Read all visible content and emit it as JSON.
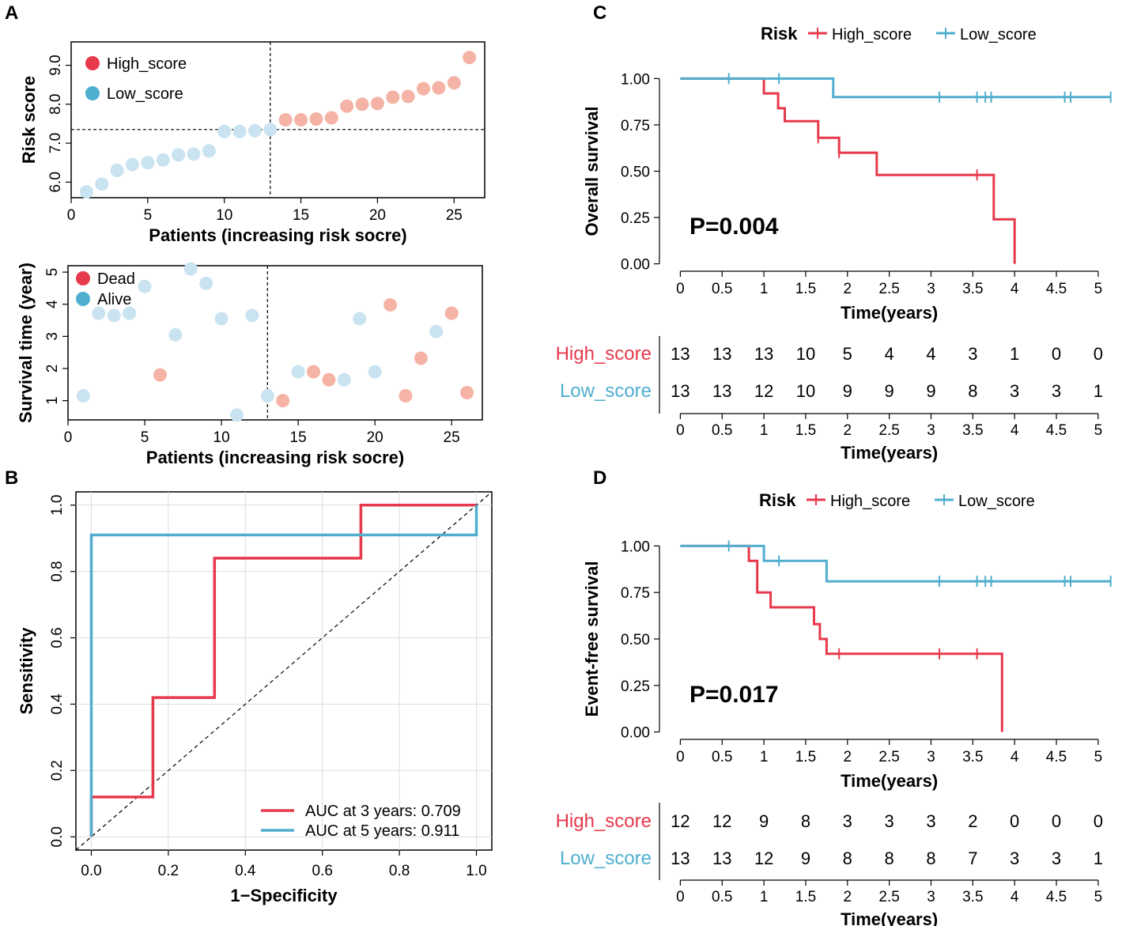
{
  "colors": {
    "high": "#E7394C",
    "low": "#50AECF",
    "high_light": "#F5B3A6",
    "low_light": "#C9E3F1",
    "axis": "#000000",
    "grid": "#DDDDDD"
  },
  "panels": {
    "A": {
      "letter": "A",
      "legend": [
        "High_score",
        "Low_score"
      ],
      "legend2": [
        "Dead",
        "Alive"
      ]
    },
    "B": {
      "letter": "B",
      "legend": [
        "AUC at 3 years: 0.709",
        "AUC at 5 years: 0.911"
      ]
    },
    "C": {
      "letter": "C",
      "legend_title": "Risk",
      "legend": [
        "High_score",
        "Low_score"
      ],
      "pvalue": "P=0.004"
    },
    "D": {
      "letter": "D",
      "legend_title": "Risk",
      "legend": [
        "High_score",
        "Low_score"
      ],
      "pvalue": "P=0.017"
    }
  },
  "chart_data": [
    {
      "id": "A-top",
      "type": "scatter",
      "xlabel": "Patients (increasing risk socre)",
      "ylabel": "Risk score",
      "xlim": [
        0,
        27
      ],
      "ylim": [
        5.6,
        9.6
      ],
      "xticks": [
        "0",
        "5",
        "10",
        "15",
        "20",
        "25"
      ],
      "yticks": [
        "6.0",
        "7.0",
        "8.0",
        "9.0"
      ],
      "cutoff_x": 13,
      "cutoff_y": 7.35,
      "series": [
        {
          "name": "Low_score",
          "x": [
            1,
            2,
            3,
            4,
            5,
            6,
            7,
            8,
            9,
            10,
            11,
            12,
            13
          ],
          "y": [
            5.75,
            5.95,
            6.3,
            6.45,
            6.5,
            6.57,
            6.7,
            6.72,
            6.8,
            7.3,
            7.3,
            7.32,
            7.35
          ]
        },
        {
          "name": "High_score",
          "x": [
            14,
            15,
            16,
            17,
            18,
            19,
            20,
            21,
            22,
            23,
            24,
            25,
            26
          ],
          "y": [
            7.6,
            7.6,
            7.62,
            7.65,
            7.95,
            8.0,
            8.02,
            8.18,
            8.2,
            8.4,
            8.42,
            8.55,
            9.2
          ]
        }
      ]
    },
    {
      "id": "A-bottom",
      "type": "scatter",
      "xlabel": "Patients (increasing risk socre)",
      "ylabel": "Survival time (year)",
      "xlim": [
        0,
        27
      ],
      "ylim": [
        0.4,
        5.2
      ],
      "xticks": [
        "0",
        "5",
        "10",
        "15",
        "20",
        "25"
      ],
      "yticks": [
        "1",
        "2",
        "3",
        "4",
        "5"
      ],
      "cutoff_x": 13,
      "series": [
        {
          "name": "Low_score Alive",
          "x": [
            1,
            2,
            3,
            4,
            5,
            7,
            8,
            9,
            10,
            11,
            12,
            13,
            15,
            18,
            19,
            20,
            24
          ],
          "y": [
            1.15,
            3.72,
            3.65,
            3.72,
            4.55,
            3.05,
            5.1,
            4.65,
            3.55,
            0.55,
            3.65,
            1.15,
            1.9,
            1.65,
            3.55,
            1.9,
            3.15
          ]
        },
        {
          "name": "Low_score Dead",
          "x": [
            6
          ],
          "y": [
            1.8
          ]
        },
        {
          "name": "High_score Dead",
          "x": [
            14,
            16,
            17,
            21,
            22,
            23,
            25,
            26
          ],
          "y": [
            1.0,
            1.9,
            1.65,
            3.98,
            1.15,
            2.32,
            3.72,
            1.25
          ]
        }
      ]
    },
    {
      "id": "B",
      "type": "line",
      "xlabel": "1−Specificity",
      "ylabel": "Sensitivity",
      "xlim": [
        -0.04,
        1.04
      ],
      "ylim": [
        -0.04,
        1.04
      ],
      "xticks": [
        "0.0",
        "0.2",
        "0.4",
        "0.6",
        "0.8",
        "1.0"
      ],
      "yticks": [
        "0.0",
        "0.2",
        "0.4",
        "0.6",
        "0.8",
        "1.0"
      ],
      "series": [
        {
          "name": "AUC at 3 years: 0.709",
          "x": [
            0,
            0,
            0.16,
            0.16,
            0.32,
            0.32,
            0.7,
            0.7,
            1.0
          ],
          "y": [
            0,
            0.12,
            0.12,
            0.42,
            0.42,
            0.84,
            0.84,
            1.0,
            1.0
          ]
        },
        {
          "name": "AUC at 5 years: 0.911",
          "x": [
            0,
            0,
            1.0,
            1.0
          ],
          "y": [
            0,
            0.91,
            0.91,
            1.0
          ]
        }
      ]
    },
    {
      "id": "C",
      "type": "line",
      "xlabel": "Time(years)",
      "ylabel": "Overall survival",
      "xlim": [
        -0.25,
        5.2
      ],
      "ylim": [
        -0.04,
        1.04
      ],
      "xticks": [
        "0",
        "0.5",
        "1",
        "1.5",
        "2",
        "2.5",
        "3",
        "3.5",
        "4",
        "4.5",
        "5"
      ],
      "yticks": [
        "0.00",
        "0.25",
        "0.50",
        "0.75",
        "1.00"
      ],
      "series": [
        {
          "name": "High_score",
          "x": [
            0,
            1,
            1,
            1.17,
            1.17,
            1.25,
            1.25,
            1.65,
            1.65,
            1.9,
            1.9,
            2.35,
            2.35,
            3.75,
            3.75,
            4.0,
            4.0
          ],
          "y": [
            1,
            1,
            0.92,
            0.92,
            0.84,
            0.84,
            0.77,
            0.77,
            0.68,
            0.68,
            0.6,
            0.6,
            0.48,
            0.48,
            0.24,
            0.24,
            0.0
          ],
          "censor_x": [
            1.65,
            1.9,
            3.55
          ]
        },
        {
          "name": "Low_score",
          "x": [
            0,
            1.83,
            1.83,
            5.15
          ],
          "y": [
            1,
            1,
            0.9,
            0.9
          ],
          "censor_x": [
            0.58,
            1.18,
            3.1,
            3.55,
            3.65,
            3.72,
            4.6,
            4.67,
            5.15
          ]
        }
      ],
      "risk_table": {
        "xlabel": "Time(years)",
        "rows": [
          {
            "name": "High_score",
            "values": [
              "13",
              "13",
              "13",
              "10",
              "5",
              "4",
              "4",
              "3",
              "1",
              "0",
              "0"
            ]
          },
          {
            "name": "Low_score",
            "values": [
              "13",
              "13",
              "12",
              "10",
              "9",
              "9",
              "9",
              "8",
              "3",
              "3",
              "1"
            ]
          }
        ]
      }
    },
    {
      "id": "D",
      "type": "line",
      "xlabel": "Time(years)",
      "ylabel": "Event-free survival",
      "xlim": [
        -0.25,
        5.2
      ],
      "ylim": [
        -0.04,
        1.04
      ],
      "xticks": [
        "0",
        "0.5",
        "1",
        "1.5",
        "2",
        "2.5",
        "3",
        "3.5",
        "4",
        "4.5",
        "5"
      ],
      "yticks": [
        "0.00",
        "0.25",
        "0.50",
        "0.75",
        "1.00"
      ],
      "series": [
        {
          "name": "High_score",
          "x": [
            0,
            0.82,
            0.82,
            0.92,
            0.92,
            1.08,
            1.08,
            1.6,
            1.6,
            1.67,
            1.67,
            1.75,
            1.75,
            3.85,
            3.85
          ],
          "y": [
            1,
            1,
            0.92,
            0.92,
            0.75,
            0.75,
            0.67,
            0.67,
            0.58,
            0.58,
            0.5,
            0.5,
            0.42,
            0.42,
            0.0
          ],
          "censor_x": [
            1.9,
            3.1,
            3.55
          ]
        },
        {
          "name": "Low_score",
          "x": [
            0,
            1.0,
            1.0,
            1.75,
            1.75,
            5.15
          ],
          "y": [
            1,
            1,
            0.92,
            0.92,
            0.81,
            0.81
          ],
          "censor_x": [
            0.58,
            1.18,
            3.1,
            3.55,
            3.65,
            3.72,
            4.6,
            4.67,
            5.15
          ]
        }
      ],
      "risk_table": {
        "xlabel": "Time(years)",
        "rows": [
          {
            "name": "High_score",
            "values": [
              "12",
              "12",
              "9",
              "8",
              "3",
              "3",
              "3",
              "2",
              "0",
              "0",
              "0"
            ]
          },
          {
            "name": "Low_score",
            "values": [
              "13",
              "13",
              "12",
              "9",
              "8",
              "8",
              "8",
              "7",
              "3",
              "3",
              "1"
            ]
          }
        ]
      }
    }
  ]
}
